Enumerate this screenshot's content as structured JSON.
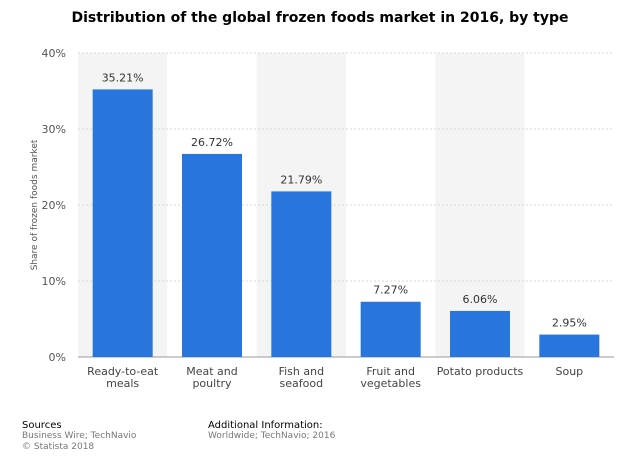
{
  "chart_data": {
    "type": "bar",
    "title": "Distribution of the global frozen foods market in 2016, by type",
    "ylabel": "Share of frozen foods market",
    "xlabel": "",
    "categories": [
      [
        "Ready-to-eat",
        "meals"
      ],
      [
        "Meat and",
        "poultry"
      ],
      [
        "Fish and",
        "seafood"
      ],
      [
        "Fruit and",
        "vegetables"
      ],
      [
        "Potato products"
      ],
      [
        "Soup"
      ]
    ],
    "values": [
      35.21,
      26.72,
      21.79,
      7.27,
      6.06,
      2.95
    ],
    "data_labels": [
      "35.21%",
      "26.72%",
      "21.79%",
      "7.27%",
      "6.06%",
      "2.95%"
    ],
    "ylim": [
      0,
      40
    ],
    "yticks": [
      0,
      10,
      20,
      30,
      40
    ],
    "ytick_labels": [
      "0%",
      "10%",
      "20%",
      "30%",
      "40%"
    ],
    "grid": true,
    "bar_color": "#2876dd"
  },
  "footer": {
    "sources_heading": "Sources",
    "sources_line1": "Business Wire; TechNavio",
    "sources_line2": "© Statista 2018",
    "info_heading": "Additional Information:",
    "info_line1": "Worldwide; TechNavio; 2016"
  }
}
